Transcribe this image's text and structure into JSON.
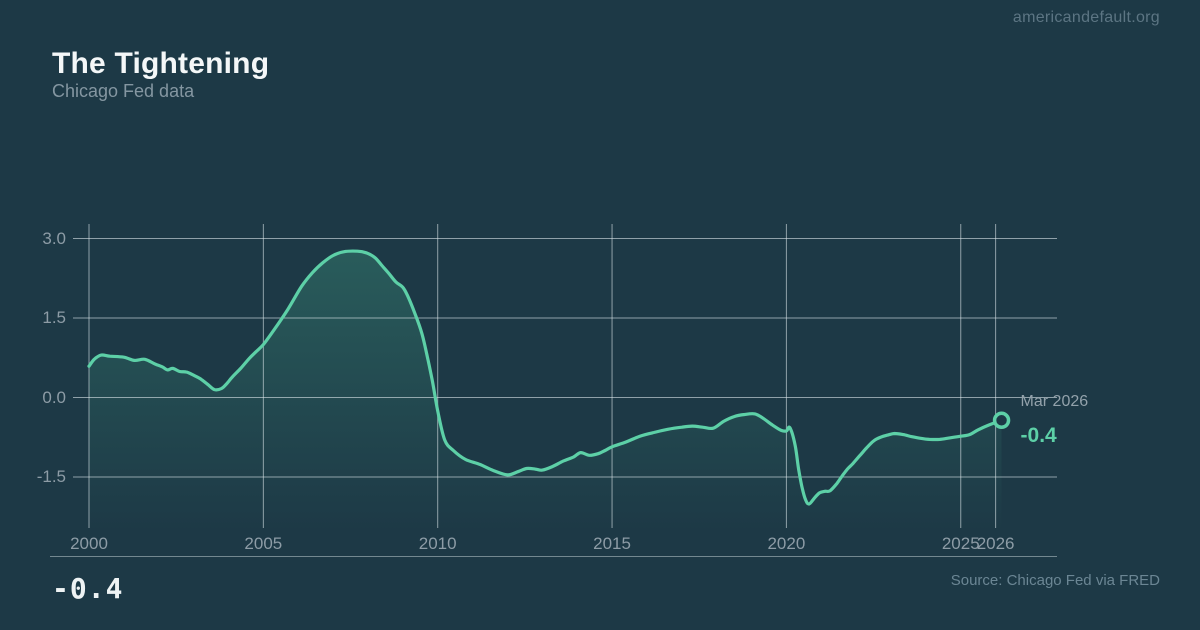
{
  "brand": "americandefault.org",
  "header": {
    "title": "The Tightening",
    "subtitle": "Chicago Fed data"
  },
  "annotation": {
    "date_label": "Mar 2026",
    "value_label": "-0.4"
  },
  "footer": {
    "big_value": "-0.4",
    "source": "Source: Chicago Fed via FRED"
  },
  "colors": {
    "background": "#1d3946",
    "line": "#5dd0a7",
    "area_fill_top": "rgba(77,195,153,0.28)",
    "area_fill_bottom": "rgba(77,195,153,0)",
    "grid": "rgba(222,232,235,0.6)",
    "axis_line": "rgba(222,232,235,0.45)",
    "tick_label": "#8d9ca6",
    "annotation_value": "#5dd0a7",
    "annotation_date": "#93a2ab"
  },
  "chart_data": {
    "type": "line",
    "title": "The Tightening",
    "subtitle": "Chicago Fed data",
    "xlabel": "",
    "ylabel": "",
    "x_range": [
      2000,
      2027.8
    ],
    "y_range": [
      -2.45,
      3.25
    ],
    "grid": true,
    "x_tick_values": [
      2000,
      2005,
      2010,
      2015,
      2020,
      2025,
      2026
    ],
    "x_tick_labels": [
      "2000",
      "2005",
      "2010",
      "2015",
      "2020",
      "2025",
      "2026"
    ],
    "y_tick_values": [
      3.0,
      1.5,
      0.0,
      -1.5
    ],
    "y_tick_labels": [
      "3.0",
      "1.5",
      "0.0",
      "-1.5"
    ],
    "series": [
      {
        "name": "Chicago Fed data",
        "points": [
          [
            2000.0,
            0.59
          ],
          [
            2000.15,
            0.72
          ],
          [
            2000.35,
            0.8
          ],
          [
            2000.6,
            0.78
          ],
          [
            2001.0,
            0.76
          ],
          [
            2001.3,
            0.7
          ],
          [
            2001.6,
            0.72
          ],
          [
            2001.9,
            0.63
          ],
          [
            2002.1,
            0.58
          ],
          [
            2002.25,
            0.52
          ],
          [
            2002.4,
            0.55
          ],
          [
            2002.6,
            0.49
          ],
          [
            2002.8,
            0.48
          ],
          [
            2003.0,
            0.42
          ],
          [
            2003.2,
            0.35
          ],
          [
            2003.4,
            0.25
          ],
          [
            2003.6,
            0.15
          ],
          [
            2003.8,
            0.17
          ],
          [
            2003.95,
            0.26
          ],
          [
            2004.1,
            0.38
          ],
          [
            2004.35,
            0.55
          ],
          [
            2004.6,
            0.74
          ],
          [
            2004.8,
            0.87
          ],
          [
            2005.0,
            1.0
          ],
          [
            2005.3,
            1.27
          ],
          [
            2005.7,
            1.66
          ],
          [
            2006.1,
            2.1
          ],
          [
            2006.4,
            2.35
          ],
          [
            2006.7,
            2.54
          ],
          [
            2007.0,
            2.68
          ],
          [
            2007.3,
            2.75
          ],
          [
            2007.7,
            2.76
          ],
          [
            2007.95,
            2.73
          ],
          [
            2008.2,
            2.64
          ],
          [
            2008.4,
            2.49
          ],
          [
            2008.6,
            2.34
          ],
          [
            2008.8,
            2.18
          ],
          [
            2009.0,
            2.08
          ],
          [
            2009.15,
            1.9
          ],
          [
            2009.35,
            1.58
          ],
          [
            2009.55,
            1.2
          ],
          [
            2009.7,
            0.78
          ],
          [
            2009.85,
            0.3
          ],
          [
            2010.0,
            -0.25
          ],
          [
            2010.2,
            -0.8
          ],
          [
            2010.45,
            -1.0
          ],
          [
            2010.8,
            -1.17
          ],
          [
            2011.2,
            -1.26
          ],
          [
            2011.6,
            -1.38
          ],
          [
            2012.0,
            -1.46
          ],
          [
            2012.3,
            -1.4
          ],
          [
            2012.55,
            -1.34
          ],
          [
            2012.8,
            -1.35
          ],
          [
            2013.0,
            -1.37
          ],
          [
            2013.3,
            -1.3
          ],
          [
            2013.6,
            -1.2
          ],
          [
            2013.9,
            -1.12
          ],
          [
            2014.1,
            -1.04
          ],
          [
            2014.35,
            -1.09
          ],
          [
            2014.6,
            -1.06
          ],
          [
            2014.8,
            -1.0
          ],
          [
            2015.0,
            -0.93
          ],
          [
            2015.4,
            -0.84
          ],
          [
            2015.8,
            -0.73
          ],
          [
            2016.2,
            -0.66
          ],
          [
            2016.6,
            -0.6
          ],
          [
            2017.0,
            -0.56
          ],
          [
            2017.3,
            -0.54
          ],
          [
            2017.6,
            -0.56
          ],
          [
            2017.9,
            -0.58
          ],
          [
            2018.2,
            -0.45
          ],
          [
            2018.5,
            -0.36
          ],
          [
            2018.8,
            -0.32
          ],
          [
            2019.1,
            -0.31
          ],
          [
            2019.35,
            -0.4
          ],
          [
            2019.6,
            -0.52
          ],
          [
            2019.85,
            -0.62
          ],
          [
            2020.0,
            -0.63
          ],
          [
            2020.1,
            -0.57
          ],
          [
            2020.25,
            -0.9
          ],
          [
            2020.35,
            -1.35
          ],
          [
            2020.45,
            -1.7
          ],
          [
            2020.55,
            -1.93
          ],
          [
            2020.65,
            -2.01
          ],
          [
            2020.8,
            -1.9
          ],
          [
            2020.95,
            -1.8
          ],
          [
            2021.1,
            -1.77
          ],
          [
            2021.25,
            -1.76
          ],
          [
            2021.45,
            -1.62
          ],
          [
            2021.6,
            -1.48
          ],
          [
            2021.75,
            -1.35
          ],
          [
            2021.9,
            -1.25
          ],
          [
            2022.1,
            -1.1
          ],
          [
            2022.3,
            -0.95
          ],
          [
            2022.5,
            -0.82
          ],
          [
            2022.7,
            -0.75
          ],
          [
            2022.9,
            -0.71
          ],
          [
            2023.1,
            -0.68
          ],
          [
            2023.35,
            -0.7
          ],
          [
            2023.6,
            -0.74
          ],
          [
            2023.85,
            -0.77
          ],
          [
            2024.1,
            -0.79
          ],
          [
            2024.4,
            -0.79
          ],
          [
            2024.7,
            -0.76
          ],
          [
            2025.0,
            -0.73
          ],
          [
            2025.25,
            -0.7
          ],
          [
            2025.5,
            -0.61
          ],
          [
            2025.8,
            -0.52
          ],
          [
            2026.17,
            -0.43
          ]
        ]
      }
    ],
    "end_point": {
      "x": 2026.17,
      "y": -0.43,
      "date_label": "Mar 2026",
      "value_label": "-0.4"
    },
    "legend_position": "none"
  }
}
